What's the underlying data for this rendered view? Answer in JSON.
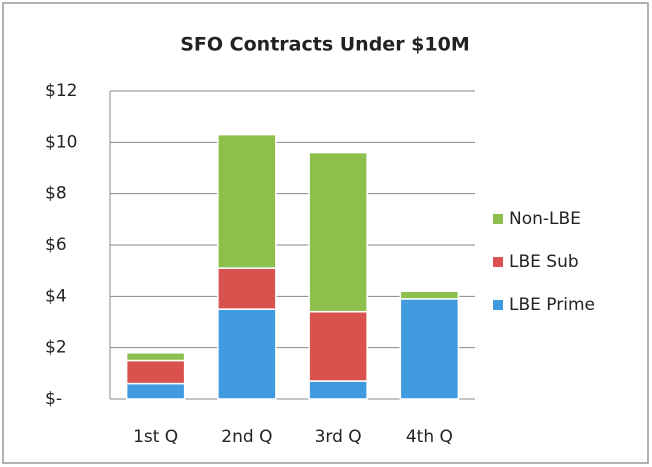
{
  "chart_data": {
    "type": "stacked_bar",
    "title": "SFO Contracts Under $10M",
    "categories": [
      "1st Q",
      "2nd Q",
      "3rd Q",
      "4th Q"
    ],
    "series": [
      {
        "name": "LBE Prime",
        "color": "#3f9ae0",
        "values": [
          0.6,
          3.5,
          0.7,
          3.9
        ]
      },
      {
        "name": "LBE Sub",
        "color": "#d9524e",
        "values": [
          0.9,
          1.6,
          2.7,
          0
        ]
      },
      {
        "name": "Non-LBE",
        "color": "#8dbf4c",
        "values": [
          0.3,
          5.2,
          6.2,
          0.3
        ]
      }
    ],
    "ylim": [
      0,
      12
    ],
    "yticks": [
      {
        "value": 0,
        "label": "$-"
      },
      {
        "value": 2,
        "label": "$2"
      },
      {
        "value": 4,
        "label": "$4"
      },
      {
        "value": 6,
        "label": "$6"
      },
      {
        "value": 8,
        "label": "$8"
      },
      {
        "value": 10,
        "label": "$10"
      },
      {
        "value": 12,
        "label": "$12"
      }
    ],
    "grid": true,
    "legend": "right"
  }
}
